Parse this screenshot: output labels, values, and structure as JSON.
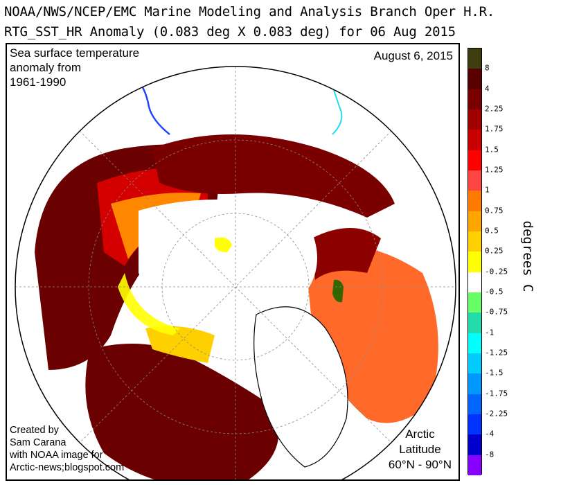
{
  "header": {
    "line1": "NOAA/NWS/NCEP/EMC Marine Modeling and Analysis Branch Oper H.R.",
    "line2": "RTG_SST_HR Anomaly (0.083 deg X 0.083 deg) for 06 Aug 2015"
  },
  "map": {
    "description_lines": [
      "Sea surface temperature",
      "anomaly from",
      "1961-1990"
    ],
    "date": "August 6, 2015",
    "credit_lines": [
      "Created by",
      "Sam Carana",
      "with NOAA image for",
      "Arctic-news;blogspot.com"
    ],
    "region_lines": [
      "Arctic",
      "Latitude",
      "60°N - 90°N"
    ],
    "land_color": "#ffffff",
    "ice_color": "#ffffff"
  },
  "colorbar": {
    "units": "degrees C",
    "labels": [
      "8",
      "4",
      "2.25",
      "1.75",
      "1.5",
      "1.25",
      "1",
      "0.75",
      "0.5",
      "0.25",
      "-0.25",
      "-0.5",
      "-0.75",
      "-1",
      "-1.25",
      "-1.5",
      "-1.75",
      "-2.25",
      "-4",
      "-8"
    ],
    "colors": [
      "#3d3d10",
      "#5a0000",
      "#7a0000",
      "#a00000",
      "#c80000",
      "#ff0000",
      "#ff4444",
      "#ff7a00",
      "#ffa500",
      "#ffd000",
      "#ffff00",
      "#ffffff",
      "#66ff66",
      "#22ddaa",
      "#00ffff",
      "#00ccff",
      "#0099ff",
      "#0066ff",
      "#0033ff",
      "#0000cc",
      "#8800ff"
    ]
  }
}
